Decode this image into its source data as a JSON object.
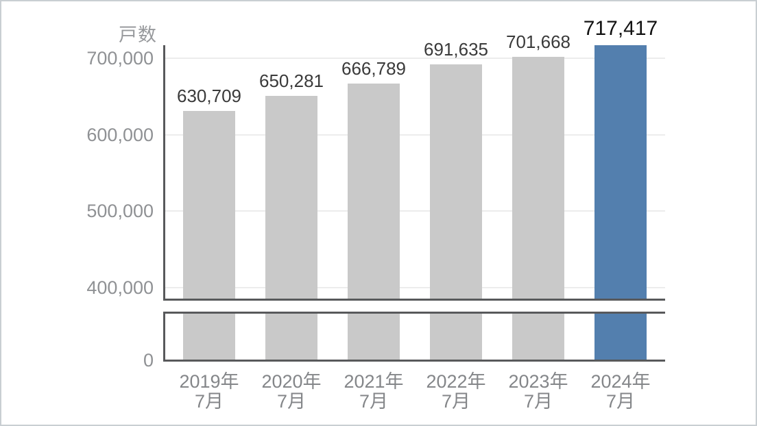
{
  "page": {
    "background": "#ffffff",
    "border_color": "#c9ced2"
  },
  "chart_data": {
    "type": "bar",
    "title": "",
    "y_axis_title": "戸数",
    "categories": [
      "2019年7月",
      "2020年7月",
      "2021年7月",
      "2022年7月",
      "2023年7月",
      "2024年7月"
    ],
    "category_lines": [
      [
        "2019年",
        "7月"
      ],
      [
        "2020年",
        "7月"
      ],
      [
        "2021年",
        "7月"
      ],
      [
        "2022年",
        "7月"
      ],
      [
        "2023年",
        "7月"
      ],
      [
        "2024年",
        "7月"
      ]
    ],
    "values": [
      630709,
      650281,
      666789,
      691635,
      701668,
      717417
    ],
    "value_labels": [
      "630,709",
      "650,281",
      "666,789",
      "691,635",
      "701,668",
      "717,417"
    ],
    "highlight_index": 5,
    "y_ticks": [
      {
        "value": 700000,
        "label": "700,000"
      },
      {
        "value": 600000,
        "label": "600,000"
      },
      {
        "value": 500000,
        "label": "500,000"
      },
      {
        "value": 400000,
        "label": "400,000"
      },
      {
        "value": 0,
        "label": "0"
      }
    ],
    "axis_break": {
      "enabled": true,
      "between": [
        0,
        382000
      ]
    },
    "ylim": [
      0,
      718000
    ],
    "grid": "on",
    "legend": "none",
    "colors": {
      "bar": "#c9c9c9",
      "highlight_bar": "#537fae",
      "axis_line": "#58595b",
      "gridline": "#ececec",
      "y_tick_label": "#8f9194",
      "x_tick_label": "#848689",
      "value_label": "#3a3a3a",
      "highlight_value_label": "#121212",
      "y_axis_title": "#97999c"
    }
  }
}
